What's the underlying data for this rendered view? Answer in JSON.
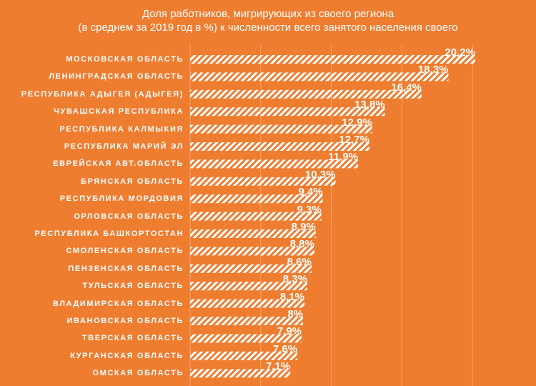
{
  "chart_data": {
    "type": "bar",
    "orientation": "horizontal",
    "title": "Доля работников, мигрирующих из своего региона",
    "subtitle": "(в среднем за 2019 год в %) к численности всего занятого населения своего",
    "categories": [
      "МОСКОВСКАЯ ОБЛАСТЬ",
      "ЛЕНИНГРАДСКАЯ ОБЛАСТЬ",
      "РЕСПУБЛИКА АДЫГЕЯ (АДЫГЕЯ)",
      "ЧУВАШСКАЯ РЕСПУБЛИКА",
      "РЕСПУБЛИКА КАЛМЫКИЯ",
      "РЕСПУБЛИКА МАРИЙ ЭЛ",
      "ЕВРЕЙСКАЯ АВТ.ОБЛАСТЬ",
      "БРЯНСКАЯ ОБЛАСТЬ",
      "РЕСПУБЛИКА МОРДОВИЯ",
      "ОРЛОВСКАЯ ОБЛАСТЬ",
      "РЕСПУБЛИКА БАШКОРТОСТАН",
      "СМОЛЕНСКАЯ ОБЛАСТЬ",
      "ПЕНЗЕНСКАЯ ОБЛАСТЬ",
      "ТУЛЬСКАЯ ОБЛАСТЬ",
      "ВЛАДИМИРСКАЯ ОБЛАСТЬ",
      "ИВАНОВСКАЯ ОБЛАСТЬ",
      "ТВЕРСКАЯ ОБЛАСТЬ",
      "КУРГАНСКАЯ ОБЛАСТЬ",
      "ОМСКАЯ ОБЛАСТЬ"
    ],
    "values": [
      20.2,
      18.3,
      16.4,
      13.8,
      12.9,
      12.7,
      11.9,
      10.3,
      9.4,
      9.3,
      8.9,
      8.8,
      8.6,
      8.3,
      8.1,
      8,
      7.9,
      7.6,
      7.1
    ],
    "value_labels": [
      "20,2%",
      "18,3%",
      "16,4%",
      "13,8%",
      "12,9%",
      "12,7%",
      "11,9%",
      "10,3%",
      "9,4%",
      "9,3%",
      "8,9%",
      "8,8%",
      "8,6%",
      "8,3%",
      "8,1%",
      "8%",
      "7,9%",
      "7,6%",
      "7,1%"
    ],
    "xlim": [
      0,
      25
    ],
    "grid": true,
    "legend": "none",
    "colors": {
      "background": "#ee7d30",
      "bar_stripe": "#ffffff",
      "gridline": "#f4a46f",
      "text": "#ffffff"
    }
  }
}
